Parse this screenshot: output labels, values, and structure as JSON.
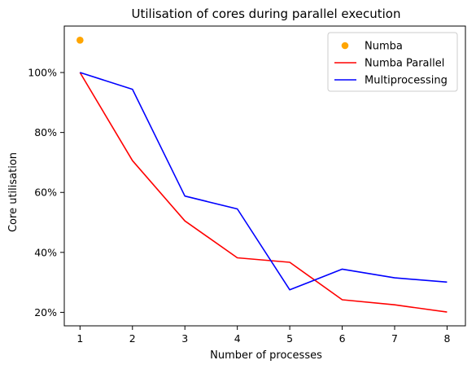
{
  "chart_data": {
    "type": "line",
    "title": "Utilisation of cores during parallel execution",
    "xlabel": "Number of processes",
    "ylabel": "Core utilisation",
    "x": [
      1,
      2,
      3,
      4,
      5,
      6,
      7,
      8
    ],
    "xlim": [
      0.7,
      8.35
    ],
    "ylim": [
      15.5,
      115.5
    ],
    "x_ticks": [
      1,
      2,
      3,
      4,
      5,
      6,
      7,
      8
    ],
    "x_tick_labels": [
      "1",
      "2",
      "3",
      "4",
      "5",
      "6",
      "7",
      "8"
    ],
    "y_ticks": [
      20,
      40,
      60,
      80,
      100
    ],
    "y_tick_labels": [
      "20%",
      "40%",
      "60%",
      "80%",
      "100%"
    ],
    "grid": false,
    "legend_position": "top-right",
    "series": [
      {
        "name": "Numba",
        "kind": "scatter",
        "color": "#ffa500",
        "x": [
          1
        ],
        "values": [
          110.8
        ]
      },
      {
        "name": "Numba Parallel",
        "kind": "line",
        "color": "#ff0000",
        "x": [
          1,
          2,
          3,
          4,
          5,
          6,
          7,
          8
        ],
        "values": [
          100,
          70.6,
          50.5,
          38.2,
          36.7,
          24.2,
          22.5,
          20.1
        ]
      },
      {
        "name": "Multiprocessing",
        "kind": "line",
        "color": "#0000ff",
        "x": [
          1,
          2,
          3,
          4,
          5,
          6,
          7,
          8
        ],
        "values": [
          100,
          94.4,
          58.8,
          54.5,
          27.5,
          34.4,
          31.5,
          30.1
        ]
      }
    ]
  }
}
